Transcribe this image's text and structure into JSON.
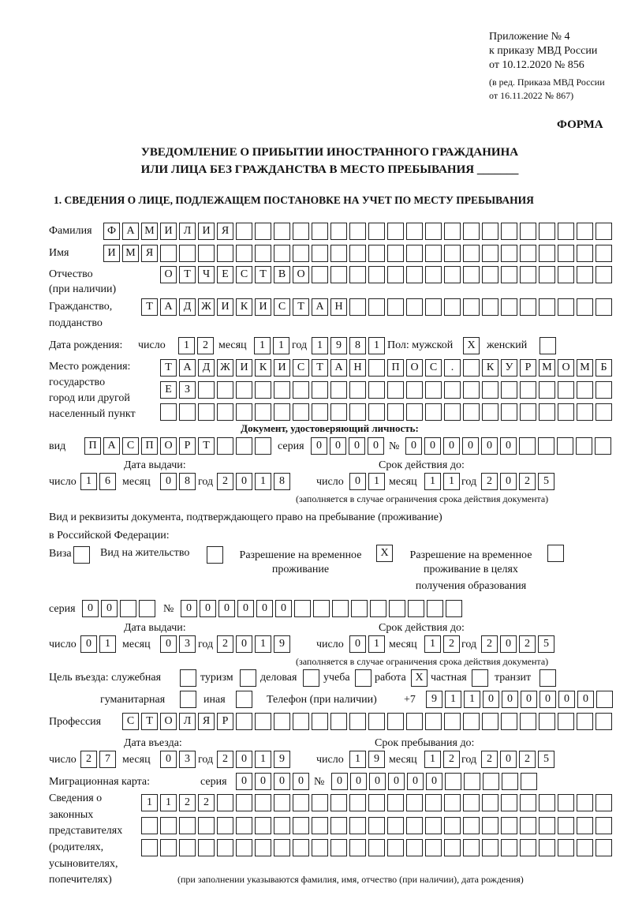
{
  "header": {
    "line1": "Приложение № 4",
    "line2": "к приказу МВД России",
    "line3": "от 10.12.2020 № 856",
    "line4": "(в ред. Приказа МВД России",
    "line5": "от 16.11.2022 № 867)",
    "forma": "ФОРМА"
  },
  "title": {
    "line1": "УВЕДОМЛЕНИЕ О ПРИБЫТИИ ИНОСТРАННОГО ГРАЖДАНИНА",
    "line2": "ИЛИ ЛИЦА БЕЗ ГРАЖДАНСТВА В МЕСТО ПРЕБЫВАНИЯ _______"
  },
  "section1": "1. СВЕДЕНИЯ О ЛИЦЕ, ПОДЛЕЖАЩЕМ ПОСТАНОВКЕ НА УЧЕТ ПО МЕСТУ ПРЕБЫВАНИЯ",
  "person": {
    "surname_label": "Фамилия",
    "surname": "ФАМИЛИЯ",
    "name_label": "Имя",
    "name": "ИМЯ",
    "patronymic_label1": "Отчество",
    "patronymic_label2": "(при наличии)",
    "patronymic": "ОТЧЕСТВО",
    "citizenship_label1": "Гражданство,",
    "citizenship_label2": "подданство",
    "citizenship": "ТАДЖИКИСТАН",
    "birth_label": "Дата рождения:",
    "day_label": "число",
    "month_label": "месяц",
    "year_label": "год",
    "birth_day": "12",
    "birth_month": "11",
    "birth_year": "1981",
    "sex_label": "Пол: мужской",
    "male": "X",
    "female_label": "женский",
    "female": "",
    "birthplace_label1": "Место рождения:",
    "birthplace_label2": "государство",
    "birthplace_label3": "город или другой",
    "birthplace_label4": "населенный пункт",
    "birthplace_row1": "ТАДЖИКИСТАН ПОС. КУРМОМБ",
    "birthplace_row2": "ЕЗ",
    "birthplace_row3": ""
  },
  "id_doc": {
    "heading": "Документ, удостоверяющий личность:",
    "type_label": "вид",
    "type": "ПАСПОРТ",
    "series_label": "серия",
    "series": "0000",
    "number_label": "№",
    "number": "000000",
    "issued_label": "Дата выдачи:",
    "valid_label": "Срок действия до:",
    "issued_day": "16",
    "issued_month": "08",
    "issued_year": "2018",
    "valid_day": "01",
    "valid_month": "11",
    "valid_year": "2025",
    "note": "(заполняется в случае ограничения срока действия документа)"
  },
  "stay_doc": {
    "heading1": "Вид и реквизиты документа, подтверждающего право на пребывание (проживание)",
    "heading2": "в Российской Федерации:",
    "visa_label": "Виза",
    "visa": "",
    "residence_label": "Вид на жительство",
    "residence": "",
    "temp_label1": "Разрешение на временное",
    "temp_label2": "проживание",
    "temp": "X",
    "edu_label1": "Разрешение на временное",
    "edu_label2": "проживание в целях",
    "edu_label3": "получения образования",
    "edu": "",
    "series_label": "серия",
    "series": "00",
    "number_label": "№",
    "number": "000000",
    "issued_label": "Дата выдачи:",
    "valid_label": "Срок действия до:",
    "issued_day": "01",
    "issued_month": "03",
    "issued_year": "2019",
    "valid_day": "01",
    "valid_month": "12",
    "valid_year": "2025",
    "note": "(заполняется в случае ограничения срока действия документа)"
  },
  "purpose": {
    "label": "Цель въезда: служебная",
    "service": "",
    "tourism_label": "туризм",
    "tourism": "",
    "business_label": "деловая",
    "business": "",
    "study_label": "учеба",
    "study": "",
    "work_label": "работа",
    "work": "X",
    "private_label": "частная",
    "private": "",
    "transit_label": "транзит",
    "transit": "",
    "humanitarian_label": "гуманитарная",
    "humanitarian": "",
    "other_label": "иная",
    "other": "",
    "phone_label": "Телефон (при наличии)",
    "phone_prefix": "+7",
    "phone": "911000000"
  },
  "profession": {
    "label": "Профессия",
    "value": "СТОЛЯР"
  },
  "entry": {
    "entry_label": "Дата въезда:",
    "stay_label": "Срок пребывания до:",
    "entry_day": "27",
    "entry_month": "03",
    "entry_year": "2019",
    "stay_day": "19",
    "stay_month": "12",
    "stay_year": "2025"
  },
  "migration": {
    "label": "Миграционная карта:",
    "series_label": "серия",
    "series": "0000",
    "number_label": "№",
    "number": "000000"
  },
  "representatives": {
    "label1": "Сведения о",
    "label2": "законных",
    "label3": "представителях",
    "label4": "(родителях,",
    "label5": "усыновителях,",
    "label6": "попечителях)",
    "row1": "1122",
    "row2": "",
    "row3": "",
    "note": "(при заполнении указываются фамилия, имя, отчество (при наличии), дата рождения)"
  }
}
